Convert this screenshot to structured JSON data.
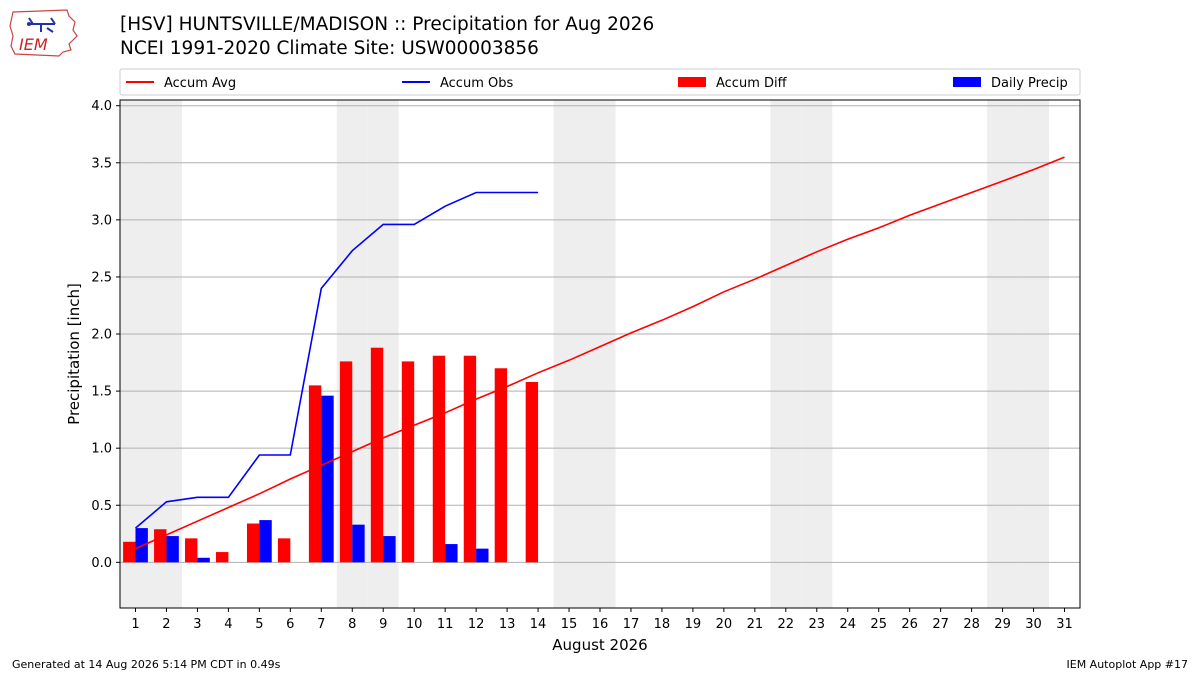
{
  "header": {
    "logo_text": "IEM",
    "title_line1": "[HSV] HUNTSVILLE/MADISON :: Precipitation for Aug 2026",
    "title_line2": "NCEI 1991-2020 Climate Site: USW00003856"
  },
  "footer": {
    "generated": "Generated at 14 Aug 2026 5:14 PM CDT in 0.49s",
    "app": "IEM Autoplot App #17"
  },
  "colors": {
    "avg": "#ff0000",
    "obs": "#0000ff",
    "diff": "#ff0000",
    "daily": "#0000ff",
    "weekend_band": "#eeeeee",
    "grid": "#b0b0b0"
  },
  "chart_data": {
    "type": "bar",
    "xlabel": "August 2026",
    "ylabel": "Precipitation [inch]",
    "ylim": [
      -0.4,
      4.05
    ],
    "xlim": [
      0.5,
      31.5
    ],
    "yticks": [
      0.0,
      0.5,
      1.0,
      1.5,
      2.0,
      2.5,
      3.0,
      3.5,
      4.0
    ],
    "ytick_labels": [
      "0.0",
      "0.5",
      "1.0",
      "1.5",
      "2.0",
      "2.5",
      "3.0",
      "3.5",
      "4.0"
    ],
    "days": [
      1,
      2,
      3,
      4,
      5,
      6,
      7,
      8,
      9,
      10,
      11,
      12,
      13,
      14,
      15,
      16,
      17,
      18,
      19,
      20,
      21,
      22,
      23,
      24,
      25,
      26,
      27,
      28,
      29,
      30,
      31
    ],
    "weekend_days": [
      1,
      2,
      8,
      9,
      15,
      16,
      22,
      23,
      29,
      30
    ],
    "grid": "horizontal",
    "legend": {
      "placement": "top, above plot",
      "entries": [
        "Accum Avg",
        "Accum Obs",
        "Accum Diff",
        "Daily Precip"
      ]
    },
    "series": [
      {
        "name": "Accum Avg",
        "kind": "line",
        "x": [
          1,
          2,
          3,
          4,
          5,
          6,
          7,
          8,
          9,
          10,
          11,
          12,
          13,
          14,
          15,
          16,
          17,
          18,
          19,
          20,
          21,
          22,
          23,
          24,
          25,
          26,
          27,
          28,
          29,
          30,
          31
        ],
        "values": [
          0.12,
          0.24,
          0.36,
          0.48,
          0.6,
          0.73,
          0.85,
          0.97,
          1.09,
          1.2,
          1.31,
          1.43,
          1.54,
          1.66,
          1.77,
          1.89,
          2.01,
          2.12,
          2.24,
          2.37,
          2.48,
          2.6,
          2.72,
          2.83,
          2.93,
          3.04,
          3.14,
          3.24,
          3.34,
          3.44,
          3.55
        ]
      },
      {
        "name": "Accum Obs",
        "kind": "line",
        "x": [
          1,
          2,
          3,
          4,
          5,
          6,
          7,
          8,
          9,
          10,
          11,
          12,
          13,
          14
        ],
        "values": [
          0.3,
          0.53,
          0.57,
          0.57,
          0.94,
          0.94,
          2.4,
          2.73,
          2.96,
          2.96,
          3.12,
          3.24,
          3.24,
          3.24
        ]
      },
      {
        "name": "Accum Diff",
        "kind": "bar",
        "x": [
          1,
          2,
          3,
          4,
          5,
          6,
          7,
          8,
          9,
          10,
          11,
          12,
          13,
          14
        ],
        "values": [
          0.18,
          0.29,
          0.21,
          0.09,
          0.34,
          0.21,
          1.55,
          1.76,
          1.88,
          1.76,
          1.81,
          1.81,
          1.7,
          1.58
        ]
      },
      {
        "name": "Daily Precip",
        "kind": "bar",
        "x": [
          1,
          2,
          3,
          4,
          5,
          6,
          7,
          8,
          9,
          10,
          11,
          12,
          13,
          14
        ],
        "values": [
          0.3,
          0.23,
          0.04,
          0.0,
          0.37,
          0.0,
          1.46,
          0.33,
          0.23,
          0.0,
          0.16,
          0.12,
          0.0,
          0.0
        ]
      }
    ]
  }
}
